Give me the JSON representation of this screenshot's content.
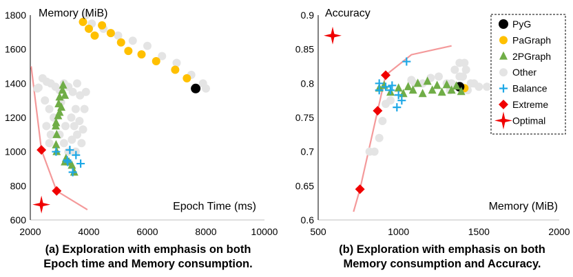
{
  "colors": {
    "pyg": "#000000",
    "pagraph": "#FFC000",
    "twopgraph": "#70AD47",
    "other": "#E4E4E4",
    "balance": "#1EA8E6",
    "extreme": "#F00000",
    "optimal": "#F00000",
    "pareto_line": "#F4999A",
    "legend_border": "#000000"
  },
  "legend": [
    {
      "key": "pyg",
      "label": "PyG",
      "marker": "circle-icon"
    },
    {
      "key": "pagraph",
      "label": "PaGraph",
      "marker": "circle-icon"
    },
    {
      "key": "twopgraph",
      "label": "2PGraph",
      "marker": "triangle-icon"
    },
    {
      "key": "other",
      "label": "Other",
      "marker": "circle-icon"
    },
    {
      "key": "balance",
      "label": "Balance",
      "marker": "plus-icon"
    },
    {
      "key": "extreme",
      "label": "Extreme",
      "marker": "diamond-icon"
    },
    {
      "key": "optimal",
      "label": "Optimal",
      "marker": "star-icon"
    }
  ],
  "chart_data": [
    {
      "type": "scatter",
      "caption_lines": [
        "(a) Exploration with emphasis on both",
        "Epoch time and Memory consumption."
      ],
      "xlabel": "Epoch Time (ms)",
      "ylabel": "Memory (MiB)",
      "xlim": [
        2000,
        10000
      ],
      "ylim": [
        600,
        1800
      ],
      "xticks": [
        "2000",
        "4000",
        "6000",
        "8000",
        "10000"
      ],
      "yticks": [
        "600",
        "800",
        "1000",
        "1200",
        "1400",
        "1600",
        "1800"
      ],
      "series": {
        "other": [
          [
            2240,
            1370
          ],
          [
            2280,
            1375
          ],
          [
            2420,
            1430
          ],
          [
            2560,
            1410
          ],
          [
            2700,
            1400
          ],
          [
            2860,
            1380
          ],
          [
            3000,
            1360
          ],
          [
            3150,
            1400
          ],
          [
            3300,
            1380
          ],
          [
            3450,
            1350
          ],
          [
            3600,
            1400
          ],
          [
            3700,
            1330
          ],
          [
            3550,
            1250
          ],
          [
            3680,
            1180
          ],
          [
            3500,
            1150
          ],
          [
            3600,
            1100
          ],
          [
            3420,
            1070
          ],
          [
            3550,
            1000
          ],
          [
            3750,
            1050
          ],
          [
            3800,
            1130
          ],
          [
            3850,
            1250
          ],
          [
            3900,
            1350
          ],
          [
            2500,
            1300
          ],
          [
            2650,
            1250
          ],
          [
            2550,
            1150
          ],
          [
            2700,
            1100
          ],
          [
            2650,
            1050
          ],
          [
            2800,
            1200
          ],
          [
            3050,
            1290
          ],
          [
            3200,
            1150
          ],
          [
            3000,
            1100
          ],
          [
            3150,
            1050
          ],
          [
            3300,
            1000
          ],
          [
            3400,
            1200
          ],
          [
            3900,
            1800
          ],
          [
            4100,
            1750
          ],
          [
            4500,
            1720
          ],
          [
            5000,
            1680
          ],
          [
            5500,
            1650
          ],
          [
            6000,
            1620
          ],
          [
            6500,
            1560
          ],
          [
            7000,
            1520
          ],
          [
            7500,
            1450
          ],
          [
            7900,
            1400
          ],
          [
            8000,
            1370
          ]
        ],
        "pagraph": [
          [
            3800,
            1760
          ],
          [
            4000,
            1720
          ],
          [
            4200,
            1680
          ],
          [
            4450,
            1740
          ],
          [
            4750,
            1695
          ],
          [
            5100,
            1640
          ],
          [
            5350,
            1590
          ],
          [
            5800,
            1570
          ],
          [
            6300,
            1530
          ],
          [
            6950,
            1480
          ],
          [
            7350,
            1430
          ]
        ],
        "pyg": [
          [
            7650,
            1370
          ]
        ],
        "twopgraph": [
          [
            2900,
            1100
          ],
          [
            2950,
            1210
          ],
          [
            2970,
            1280
          ],
          [
            3000,
            1320
          ],
          [
            3060,
            1260
          ],
          [
            3100,
            1360
          ],
          [
            3120,
            1390
          ],
          [
            3180,
            1330
          ],
          [
            2870,
            1150
          ],
          [
            2880,
            1040
          ],
          [
            2900,
            1000
          ],
          [
            3180,
            940
          ],
          [
            3220,
            960
          ],
          [
            3320,
            940
          ],
          [
            3420,
            920
          ],
          [
            3500,
            880
          ],
          [
            2880,
            1170
          ],
          [
            3000,
            1230
          ]
        ],
        "balance": [
          [
            2880,
            1000
          ],
          [
            3350,
            1010
          ],
          [
            3560,
            980
          ],
          [
            3720,
            930
          ],
          [
            3260,
            950
          ],
          [
            3450,
            880
          ],
          [
            3280,
            940
          ]
        ],
        "extreme": [
          [
            2380,
            1010
          ],
          [
            2900,
            770
          ]
        ],
        "optimal": [
          [
            2380,
            690
          ]
        ],
        "pareto_line": [
          [
            2030,
            1500
          ],
          [
            2380,
            1010
          ],
          [
            2900,
            770
          ],
          [
            3950,
            660
          ]
        ]
      }
    },
    {
      "type": "scatter",
      "caption_lines": [
        "(b) Exploration with emphasis on both",
        "Memory consumption and Accuracy."
      ],
      "xlabel": "Memory (MiB)",
      "ylabel": "Accuracy",
      "xlim": [
        500,
        2000
      ],
      "ylim": [
        0.6,
        0.9
      ],
      "xticks": [
        "500",
        "1000",
        "1500",
        "2000"
      ],
      "yticks": [
        "0.6",
        "0.65",
        "0.7",
        "0.75",
        "0.8",
        "0.85",
        "0.9"
      ],
      "series": {
        "other": [
          [
            820,
            0.7
          ],
          [
            850,
            0.7
          ],
          [
            880,
            0.72
          ],
          [
            900,
            0.745
          ],
          [
            920,
            0.77
          ],
          [
            950,
            0.775
          ],
          [
            1080,
            0.805
          ],
          [
            1100,
            0.8
          ],
          [
            1150,
            0.8
          ],
          [
            1200,
            0.808
          ],
          [
            1250,
            0.81
          ],
          [
            1300,
            0.8
          ],
          [
            1320,
            0.79
          ],
          [
            1350,
            0.82
          ],
          [
            1380,
            0.83
          ],
          [
            1380,
            0.81
          ],
          [
            1400,
            0.81
          ],
          [
            1420,
            0.82
          ],
          [
            1430,
            0.79
          ],
          [
            1450,
            0.8
          ],
          [
            1470,
            0.8
          ],
          [
            1500,
            0.795
          ],
          [
            1550,
            0.795
          ],
          [
            1410,
            0.83
          ],
          [
            1330,
            0.8
          ]
        ],
        "pagraph": [
          [
            1410,
            0.793
          ]
        ],
        "pyg": [
          [
            1380,
            0.795
          ]
        ],
        "twopgraph": [
          [
            880,
            0.793
          ],
          [
            910,
            0.797
          ],
          [
            950,
            0.787
          ],
          [
            1000,
            0.793
          ],
          [
            1030,
            0.785
          ],
          [
            1060,
            0.795
          ],
          [
            1090,
            0.79
          ],
          [
            1120,
            0.8
          ],
          [
            1150,
            0.785
          ],
          [
            1180,
            0.803
          ],
          [
            1210,
            0.79
          ],
          [
            1240,
            0.797
          ],
          [
            1270,
            0.787
          ],
          [
            1300,
            0.798
          ],
          [
            1330,
            0.79
          ],
          [
            1360,
            0.796
          ],
          [
            1390,
            0.788
          ]
        ],
        "balance": [
          [
            880,
            0.8
          ],
          [
            880,
            0.79
          ],
          [
            920,
            0.795
          ],
          [
            960,
            0.797
          ],
          [
            1000,
            0.783
          ],
          [
            1020,
            0.775
          ],
          [
            1050,
            0.832
          ],
          [
            990,
            0.765
          ],
          [
            950,
            0.79
          ]
        ],
        "extreme": [
          [
            760,
            0.645
          ],
          [
            870,
            0.76
          ],
          [
            920,
            0.812
          ]
        ],
        "optimal": [
          [
            590,
            0.87
          ]
        ],
        "pareto_line": [
          [
            720,
            0.612
          ],
          [
            760,
            0.645
          ],
          [
            870,
            0.76
          ],
          [
            920,
            0.812
          ],
          [
            1080,
            0.842
          ],
          [
            1330,
            0.855
          ]
        ]
      }
    }
  ]
}
